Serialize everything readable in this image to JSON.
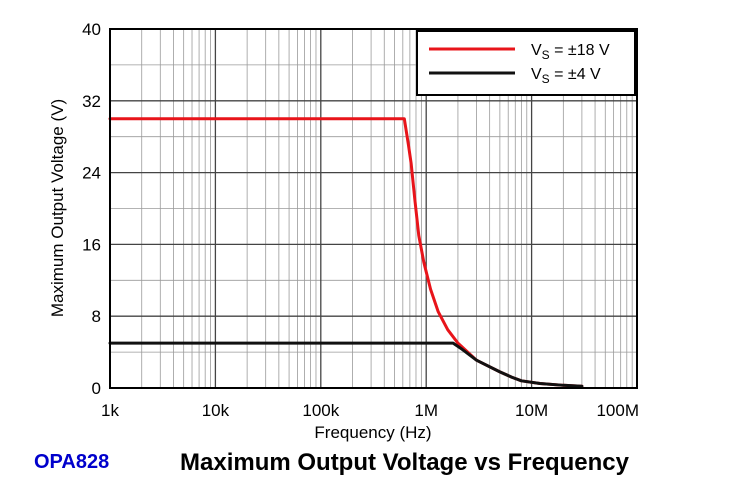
{
  "part_number": "OPA828",
  "colors": {
    "series_18v": "#e8141a",
    "series_4v": "#111111",
    "part_number": "#0000cc"
  },
  "chart_data": {
    "type": "line",
    "title": "Maximum Output Voltage vs Frequency",
    "xlabel": "Frequency (Hz)",
    "ylabel": "Maximum Output Voltage (V)",
    "xscale": "log",
    "xlim": [
      1000,
      100000000
    ],
    "ylim": [
      0,
      40
    ],
    "x_ticks": [
      {
        "value": 1000,
        "label": "1k"
      },
      {
        "value": 10000,
        "label": "10k"
      },
      {
        "value": 100000,
        "label": "100k"
      },
      {
        "value": 1000000,
        "label": "1M"
      },
      {
        "value": 10000000,
        "label": "10M"
      },
      {
        "value": 100000000,
        "label": "100M"
      }
    ],
    "y_ticks": [
      {
        "value": 0,
        "label": "0"
      },
      {
        "value": 8,
        "label": "8"
      },
      {
        "value": 16,
        "label": "16"
      },
      {
        "value": 24,
        "label": "24"
      },
      {
        "value": 32,
        "label": "32"
      },
      {
        "value": 40,
        "label": "40"
      }
    ],
    "grid": true,
    "legend_position": "top-right",
    "series": [
      {
        "name": "VS = ±18 V",
        "label_main": "V",
        "label_sub": "S",
        "label_rest": " = ±18 V",
        "color": "#e8141a",
        "points": [
          [
            1000,
            30
          ],
          [
            620000,
            30
          ],
          [
            680000,
            27
          ],
          [
            720000,
            25
          ],
          [
            780000,
            21
          ],
          [
            850000,
            17
          ],
          [
            950000,
            14
          ],
          [
            1100000,
            11
          ],
          [
            1300000,
            8.5
          ],
          [
            1600000,
            6.5
          ],
          [
            2000000,
            5
          ],
          [
            3000000,
            3.1
          ],
          [
            5000000,
            1.8
          ],
          [
            6500000,
            1.2
          ],
          [
            8000000,
            0.8
          ],
          [
            12000000,
            0.5
          ],
          [
            20000000,
            0.3
          ],
          [
            30000000,
            0.2
          ]
        ]
      },
      {
        "name": "VS = ±4 V",
        "label_main": "V",
        "label_sub": "S",
        "label_rest": " = ±4 V",
        "color": "#111111",
        "points": [
          [
            1000,
            5
          ],
          [
            1800000,
            5
          ],
          [
            2200000,
            4.3
          ],
          [
            3000000,
            3.1
          ],
          [
            5000000,
            1.8
          ],
          [
            6500000,
            1.2
          ],
          [
            8000000,
            0.8
          ],
          [
            12000000,
            0.5
          ],
          [
            20000000,
            0.3
          ],
          [
            30000000,
            0.2
          ]
        ]
      }
    ]
  }
}
